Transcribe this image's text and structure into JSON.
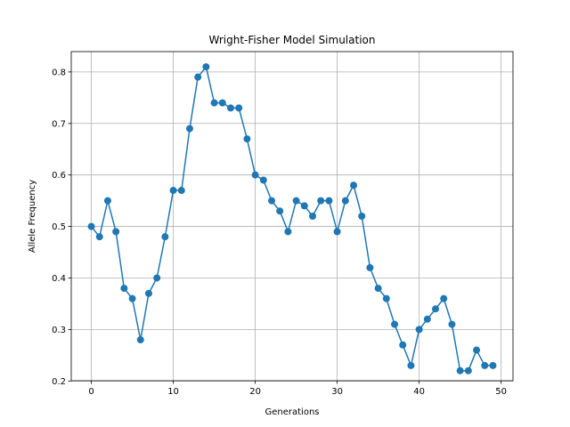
{
  "chart_data": {
    "type": "line",
    "title": "Wright-Fisher Model Simulation",
    "xlabel": "Generations",
    "ylabel": "Allele Frequency",
    "xlim": [
      -2.45,
      51.45
    ],
    "ylim": [
      0.2005,
      0.8395
    ],
    "xticks": [
      0,
      10,
      20,
      30,
      40,
      50
    ],
    "yticks": [
      0.2,
      0.3,
      0.4,
      0.5,
      0.6,
      0.7,
      0.8
    ],
    "xtick_labels": [
      "0",
      "10",
      "20",
      "30",
      "40",
      "50"
    ],
    "ytick_labels": [
      "0.2",
      "0.3",
      "0.4",
      "0.5",
      "0.6",
      "0.7",
      "0.8"
    ],
    "grid": true,
    "marker": "circle",
    "series": [
      {
        "color": "#1f77b4",
        "x": [
          0,
          1,
          2,
          3,
          4,
          5,
          6,
          7,
          8,
          9,
          10,
          11,
          12,
          13,
          14,
          15,
          16,
          17,
          18,
          19,
          20,
          21,
          22,
          23,
          24,
          25,
          26,
          27,
          28,
          29,
          30,
          31,
          32,
          33,
          34,
          35,
          36,
          37,
          38,
          39,
          40,
          41,
          42,
          43,
          44,
          45,
          46,
          47,
          48,
          49
        ],
        "values": [
          0.5,
          0.48,
          0.55,
          0.49,
          0.38,
          0.36,
          0.28,
          0.37,
          0.4,
          0.48,
          0.57,
          0.57,
          0.69,
          0.79,
          0.81,
          0.74,
          0.74,
          0.73,
          0.73,
          0.67,
          0.6,
          0.59,
          0.55,
          0.53,
          0.49,
          0.55,
          0.54,
          0.52,
          0.55,
          0.55,
          0.49,
          0.55,
          0.58,
          0.52,
          0.42,
          0.38,
          0.36,
          0.31,
          0.27,
          0.23,
          0.3,
          0.32,
          0.34,
          0.36,
          0.31,
          0.22,
          0.22,
          0.26,
          0.23,
          0.23
        ]
      }
    ]
  }
}
